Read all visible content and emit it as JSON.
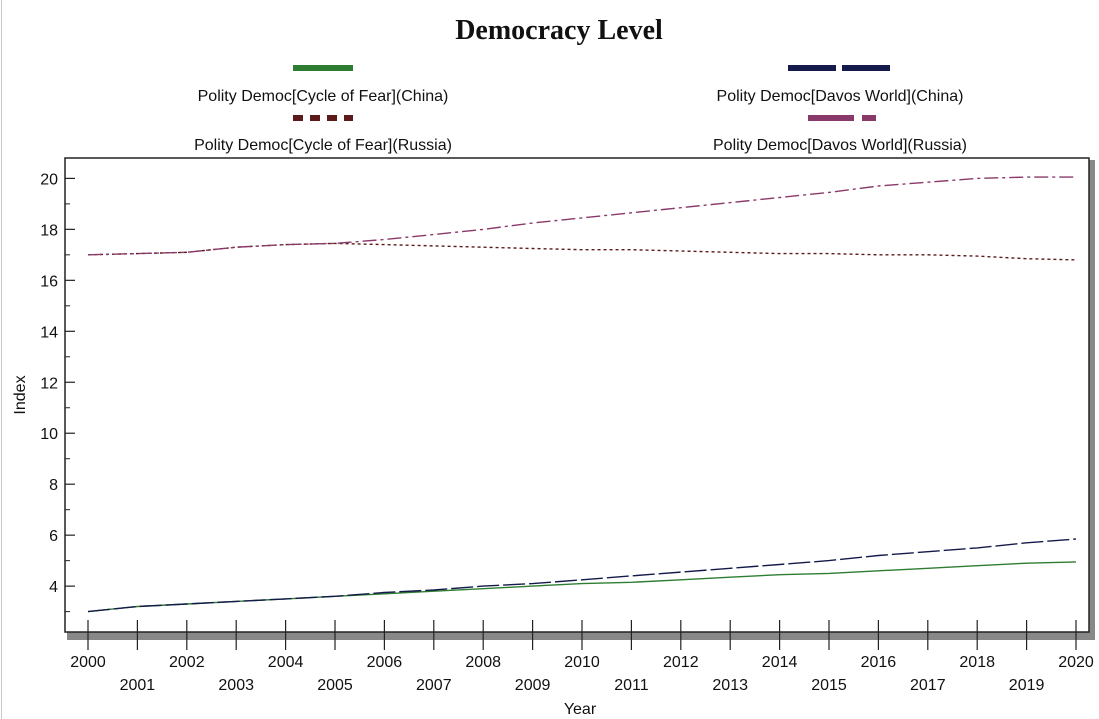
{
  "chart_data": {
    "type": "line",
    "title": "Democracy Level",
    "xlabel": "Year",
    "ylabel": "Index",
    "xlim": [
      2000,
      2020
    ],
    "ylim": [
      2.2,
      20.8
    ],
    "y_ticks": [
      4,
      6,
      8,
      10,
      12,
      14,
      16,
      18,
      20
    ],
    "x_ticks": [
      2000,
      2001,
      2002,
      2003,
      2004,
      2005,
      2006,
      2007,
      2008,
      2009,
      2010,
      2011,
      2012,
      2013,
      2014,
      2015,
      2016,
      2017,
      2018,
      2019,
      2020
    ],
    "x_tick_labels": [
      "2000",
      "2001",
      "2002",
      "2003",
      "2004",
      "2005",
      "2006",
      "2007",
      "2008",
      "2009",
      "2010",
      "2011",
      "2012",
      "2013",
      "2014",
      "2015",
      "2016",
      "2017",
      "2018",
      "2019",
      "2020"
    ],
    "grid": false,
    "legend_position": "top",
    "x": [
      2000,
      2001,
      2002,
      2003,
      2004,
      2005,
      2006,
      2007,
      2008,
      2009,
      2010,
      2011,
      2012,
      2013,
      2014,
      2015,
      2016,
      2017,
      2018,
      2019,
      2020
    ],
    "series": [
      {
        "name": "Polity Democ[Cycle of Fear](China)",
        "color": "#2e7d32",
        "dash": "solid",
        "values": [
          3.0,
          3.2,
          3.3,
          3.4,
          3.5,
          3.6,
          3.7,
          3.8,
          3.9,
          4.0,
          4.1,
          4.15,
          4.25,
          4.35,
          4.45,
          4.5,
          4.6,
          4.7,
          4.8,
          4.9,
          4.95
        ]
      },
      {
        "name": "Polity Democ[Davos World](China)",
        "color": "#141b4a",
        "dash": "longdash",
        "values": [
          3.0,
          3.2,
          3.3,
          3.4,
          3.5,
          3.6,
          3.75,
          3.85,
          4.0,
          4.1,
          4.25,
          4.4,
          4.55,
          4.7,
          4.85,
          5.0,
          5.2,
          5.35,
          5.5,
          5.7,
          5.85
        ]
      },
      {
        "name": "Polity Democ[Cycle of Fear](Russia)",
        "color": "#5c1a1a",
        "dash": "dotted",
        "values": [
          17.0,
          17.05,
          17.1,
          17.3,
          17.4,
          17.45,
          17.4,
          17.35,
          17.3,
          17.25,
          17.2,
          17.2,
          17.15,
          17.1,
          17.05,
          17.05,
          17.0,
          17.0,
          16.95,
          16.85,
          16.8
        ]
      },
      {
        "name": "Polity Democ[Davos World](Russia)",
        "color": "#8a3a6a",
        "dash": "dashdot",
        "values": [
          17.0,
          17.05,
          17.1,
          17.3,
          17.4,
          17.45,
          17.6,
          17.8,
          18.0,
          18.25,
          18.45,
          18.65,
          18.85,
          19.05,
          19.25,
          19.45,
          19.7,
          19.85,
          20.0,
          20.05,
          20.05
        ]
      }
    ]
  }
}
